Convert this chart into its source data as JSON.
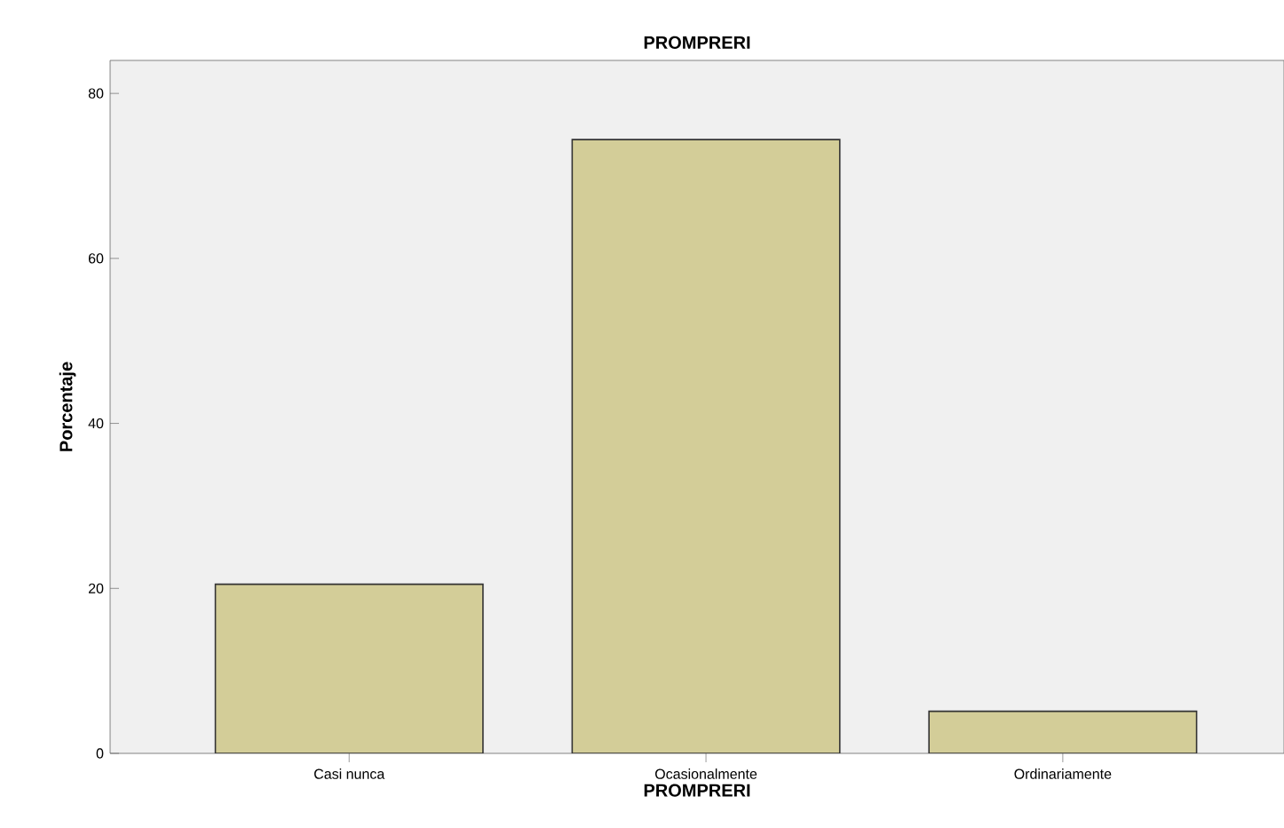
{
  "chart_data": {
    "type": "bar",
    "title": "PROMPRERI",
    "xlabel": "PROMPRERI",
    "ylabel": "Porcentaje",
    "categories": [
      "Casi nunca",
      "Ocasionalmente",
      "Ordinariamente"
    ],
    "values": [
      20.5,
      74.4,
      5.1
    ],
    "color": "#d3cd98",
    "ylim": [
      0,
      84
    ],
    "yticks": [
      0,
      20,
      40,
      60,
      80
    ],
    "grid": false
  }
}
